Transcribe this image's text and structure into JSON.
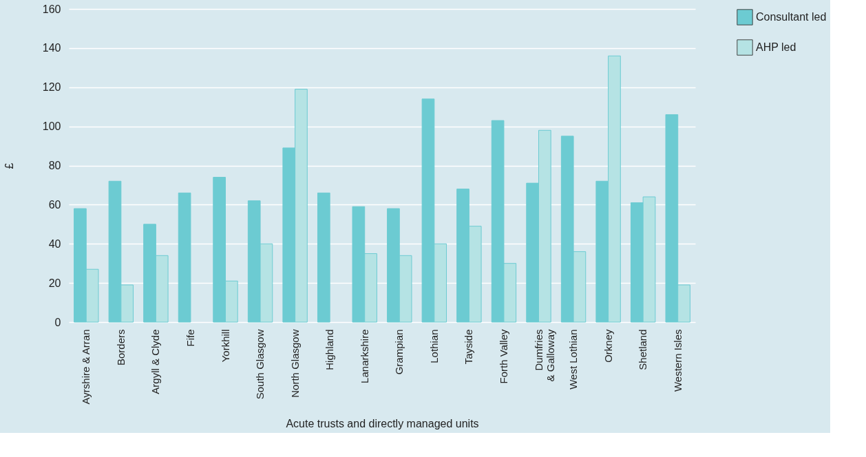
{
  "chart_data": {
    "type": "bar",
    "xlabel": "Acute trusts and directly managed units",
    "ylabel": "£",
    "categories": [
      "Ayrshire & Arran",
      "Borders",
      "Argyll & Clyde",
      "Fife",
      "Yorkhill",
      "South Glasgow",
      "North Glasgow",
      "Highland",
      "Lanarkshire",
      "Grampian",
      "Lothian",
      "Tayside",
      "Forth Valley",
      "Dumfries\n& Galloway",
      "West Lothian",
      "Orkney",
      "Shetland",
      "Western Isles"
    ],
    "series": [
      {
        "name": "Consultant led",
        "color": "#6ccbd2",
        "values": [
          58,
          72,
          50,
          66,
          74,
          62,
          89,
          66,
          59,
          58,
          114,
          68,
          103,
          71,
          95,
          72,
          61,
          106
        ]
      },
      {
        "name": "AHP led",
        "color": "#b5e3e4",
        "values": [
          27,
          19,
          34,
          null,
          21,
          40,
          119,
          null,
          35,
          34,
          40,
          49,
          30,
          98,
          36,
          136,
          64,
          19
        ]
      }
    ],
    "ylim": [
      0,
      160
    ],
    "yticks": [
      0,
      20,
      40,
      60,
      80,
      100,
      120,
      140,
      160
    ],
    "grid": "y",
    "legend": "right"
  }
}
